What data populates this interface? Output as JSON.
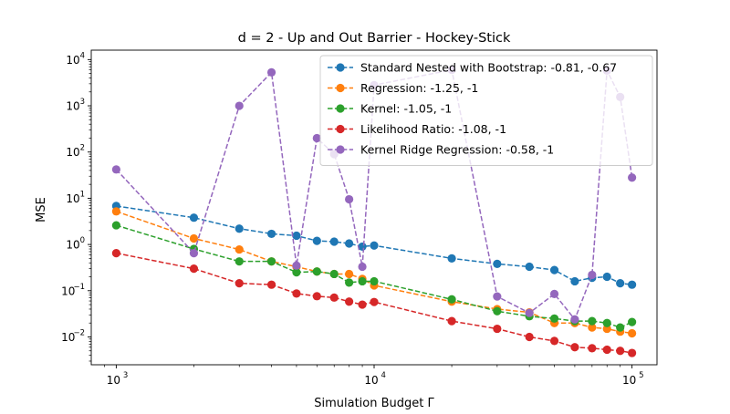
{
  "chart_data": {
    "type": "line",
    "title": "d = 2 - Up and Out Barrier - Hockey-Stick",
    "xlabel": "Simulation Budget Γ",
    "ylabel": "MSE",
    "xscale": "log",
    "yscale": "log",
    "xlim": [
      800,
      125000
    ],
    "ylim": [
      0.0025,
      16000
    ],
    "grid": false,
    "legend_position": "top-right",
    "x_ticks": [
      {
        "value": 1000,
        "base": "10",
        "exp": "3"
      },
      {
        "value": 10000,
        "base": "10",
        "exp": "4"
      },
      {
        "value": 100000,
        "base": "10",
        "exp": "5"
      }
    ],
    "y_ticks": [
      {
        "value": 0.01,
        "base": "10",
        "exp": "−2"
      },
      {
        "value": 0.1,
        "base": "10",
        "exp": "−1"
      },
      {
        "value": 1,
        "base": "10",
        "exp": "0"
      },
      {
        "value": 10,
        "base": "10",
        "exp": "1"
      },
      {
        "value": 100,
        "base": "10",
        "exp": "2"
      },
      {
        "value": 1000,
        "base": "10",
        "exp": "3"
      },
      {
        "value": 10000,
        "base": "10",
        "exp": "4"
      }
    ],
    "x": [
      1000,
      2000,
      3000,
      4000,
      5000,
      6000,
      7000,
      8000,
      9000,
      10000,
      20000,
      30000,
      40000,
      50000,
      60000,
      70000,
      80000,
      90000,
      100000
    ],
    "series": [
      {
        "name": "Standard Nested with Bootstrap: -0.81, -0.67",
        "color": "#1f77b4",
        "values": [
          6.8,
          3.8,
          2.2,
          1.7,
          1.55,
          1.2,
          1.15,
          1.05,
          0.9,
          0.95,
          0.5,
          0.38,
          0.33,
          0.28,
          0.16,
          0.19,
          0.2,
          0.145,
          0.135
        ]
      },
      {
        "name": "Regression: -1.25, -1",
        "color": "#ff7f0e",
        "values": [
          5.2,
          1.35,
          0.78,
          0.43,
          0.33,
          0.26,
          0.23,
          0.23,
          0.18,
          0.13,
          0.058,
          0.04,
          0.034,
          0.02,
          0.02,
          0.016,
          0.015,
          0.013,
          0.012
        ]
      },
      {
        "name": "Kernel: -1.05, -1",
        "color": "#2ca02c",
        "values": [
          2.6,
          0.8,
          0.43,
          0.43,
          0.25,
          0.26,
          0.23,
          0.15,
          0.16,
          0.16,
          0.065,
          0.036,
          0.028,
          0.025,
          0.022,
          0.022,
          0.02,
          0.016,
          0.021
        ]
      },
      {
        "name": "Likelihood Ratio: -1.08, -1",
        "color": "#d62728",
        "values": [
          0.65,
          0.3,
          0.145,
          0.135,
          0.087,
          0.076,
          0.071,
          0.058,
          0.05,
          0.057,
          0.022,
          0.015,
          0.01,
          0.0082,
          0.006,
          0.0057,
          0.0053,
          0.005,
          0.0045
        ]
      },
      {
        "name": "Kernel Ridge Regression: -0.58, -1",
        "color": "#9467bd",
        "values": [
          42,
          0.65,
          1000,
          5300,
          0.35,
          200,
          90,
          9.5,
          0.33,
          2800,
          6000,
          0.075,
          0.033,
          0.085,
          0.024,
          0.22,
          5800,
          1550,
          28
        ]
      }
    ]
  }
}
